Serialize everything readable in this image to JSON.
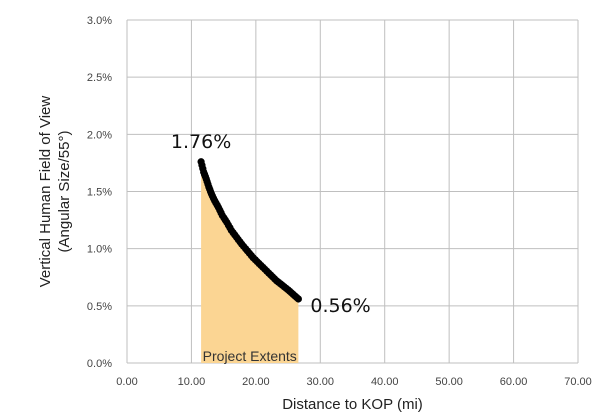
{
  "chart_data": {
    "type": "area",
    "title": "",
    "xlabel": "Distance to KOP (mi)",
    "ylabel_lines": [
      "Vertical Human Field of View",
      "(Angular Size/55°)"
    ],
    "xlim": [
      0,
      70
    ],
    "ylim": [
      0,
      3.0
    ],
    "x_ticks": [
      "0.00",
      "10.00",
      "20.00",
      "30.00",
      "40.00",
      "50.00",
      "60.00",
      "70.00"
    ],
    "y_ticks": [
      "0.0%",
      "0.5%",
      "1.0%",
      "1.5%",
      "2.0%",
      "2.5%",
      "3.0%"
    ],
    "grid": true,
    "series": [
      {
        "marker": "dot",
        "x": [
          11.5,
          11.9,
          12.3,
          12.7,
          13.1,
          13.6,
          14.2,
          14.8,
          15.5,
          16.2,
          17.0,
          17.8,
          18.7,
          19.6,
          20.5,
          21.4,
          22.3,
          23.2,
          24.1,
          25.0,
          25.8,
          26.6
        ],
        "y": [
          1.76,
          1.67,
          1.61,
          1.54,
          1.48,
          1.42,
          1.36,
          1.29,
          1.23,
          1.16,
          1.1,
          1.04,
          0.98,
          0.92,
          0.87,
          0.82,
          0.77,
          0.72,
          0.68,
          0.64,
          0.6,
          0.56
        ]
      }
    ],
    "shaded_region": {
      "label": "Project Extents",
      "x_range": [
        11.5,
        26.6
      ],
      "color": "#fbd593"
    },
    "annotations": [
      {
        "text": "1.76%",
        "x": 11.5,
        "y": 1.76
      },
      {
        "text": "0.56%",
        "x": 26.6,
        "y": 0.56
      }
    ],
    "colors": {
      "points": "#000000",
      "grid": "#bfbfbf",
      "fill": "#fbd593"
    }
  }
}
